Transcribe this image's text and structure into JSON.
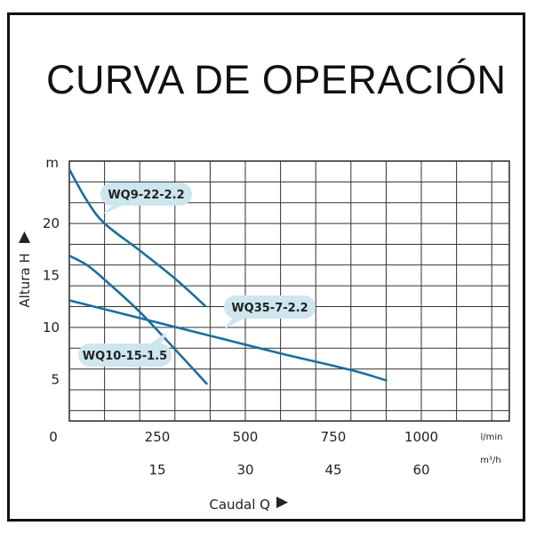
{
  "title": "CURVA DE OPERACIÓN",
  "colors": {
    "curve": "#1a6f9e",
    "badge": "#cde6ef",
    "grid": "#333333",
    "frame": "#111111"
  },
  "chart_data": {
    "type": "line",
    "ylabel": "Altura  H",
    "xlabel": "Caudal  Q",
    "x_unit_primary": "l/min",
    "x_unit_secondary": "m³/h",
    "y_unit": "m",
    "origin_label": "0",
    "xlim": [
      0,
      1250
    ],
    "ylim": [
      1,
      26
    ],
    "x_ticks_primary": [
      {
        "value": 250,
        "label": "250"
      },
      {
        "value": 500,
        "label": "500"
      },
      {
        "value": 750,
        "label": "750"
      },
      {
        "value": 1000,
        "label": "1000"
      }
    ],
    "x_ticks_secondary": [
      {
        "value": 15,
        "label": "15"
      },
      {
        "value": 30,
        "label": "30"
      },
      {
        "value": 45,
        "label": "45"
      },
      {
        "value": 60,
        "label": "60"
      }
    ],
    "y_ticks": [
      {
        "value": 5,
        "label": "5"
      },
      {
        "value": 10,
        "label": "10"
      },
      {
        "value": 15,
        "label": "15"
      },
      {
        "value": 20,
        "label": "20"
      }
    ],
    "grid": true,
    "series": [
      {
        "name": "WQ9-22-2.2",
        "points": [
          [
            0,
            25.2
          ],
          [
            50,
            22.2
          ],
          [
            100,
            20.0
          ],
          [
            200,
            17.4
          ],
          [
            300,
            14.7
          ],
          [
            385,
            12.1
          ]
        ]
      },
      {
        "name": "WQ10-15-1.5",
        "points": [
          [
            0,
            16.9
          ],
          [
            50,
            16.0
          ],
          [
            100,
            14.6
          ],
          [
            200,
            11.5
          ],
          [
            300,
            7.9
          ],
          [
            390,
            4.6
          ]
        ]
      },
      {
        "name": "WQ35-7-2.2",
        "points": [
          [
            0,
            12.6
          ],
          [
            200,
            10.9
          ],
          [
            400,
            9.2
          ],
          [
            600,
            7.5
          ],
          [
            800,
            5.9
          ],
          [
            900,
            4.9
          ]
        ]
      }
    ]
  }
}
